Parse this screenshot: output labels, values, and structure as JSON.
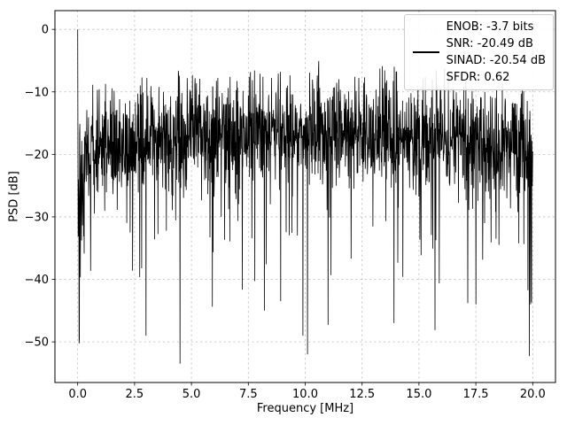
{
  "figure": {
    "xlabel": "Frequency [MHz]",
    "ylabel": "PSD [dB]",
    "xlim": [
      -1,
      21
    ],
    "ylim": [
      -56.5,
      3
    ],
    "x_ticks": {
      "values": [
        0,
        2.5,
        5,
        7.5,
        10,
        12.5,
        15,
        17.5,
        20
      ],
      "labels": [
        "0.0",
        "2.5",
        "5.0",
        "7.5",
        "10.0",
        "12.5",
        "15.0",
        "17.5",
        "20.0"
      ]
    },
    "y_ticks": {
      "values": [
        0,
        -10,
        -20,
        -30,
        -40,
        -50
      ],
      "labels": [
        "0",
        "−10",
        "−20",
        "−30",
        "−40",
        "−50"
      ]
    }
  },
  "legend": {
    "lines": [
      "ENOB: -3.7 bits",
      "SNR: -20.49 dB",
      "SINAD: -20.54 dB",
      "SFDR: 0.62"
    ],
    "line_color": "#000000"
  },
  "chart_data": {
    "type": "line",
    "title": "",
    "xlabel": "Frequency [MHz]",
    "ylabel": "PSD [dB]",
    "xlim": [
      -1,
      21
    ],
    "ylim": [
      -56.5,
      3
    ],
    "x_range_mhz": [
      0,
      20
    ],
    "grid": true,
    "legend_position": "upper right",
    "series": [
      {
        "name": "PSD",
        "color": "#000000",
        "description": "dense noise power spectral density, 0-20 MHz",
        "dc_spike_db": 0,
        "noise_mean_db": -19,
        "noise_std_db": 4.5,
        "top_envelope_db": -5.5,
        "deep_dip_min_db": -53.5
      }
    ],
    "annotations": {
      "ENOB": "-3.7 bits",
      "SNR": "-20.49 dB",
      "SINAD": "-20.54 dB",
      "SFDR": "0.62"
    },
    "notable_minima": [
      {
        "x": 3.0,
        "y": -49.0
      },
      {
        "x": 4.5,
        "y": -53.5
      },
      {
        "x": 8.2,
        "y": -45.0
      },
      {
        "x": 9.9,
        "y": -49.0
      },
      {
        "x": 10.1,
        "y": -52.0
      },
      {
        "x": 13.9,
        "y": -47.0
      },
      {
        "x": 17.5,
        "y": -44.0
      },
      {
        "x": 19.9,
        "y": -44.0
      }
    ],
    "noise_render": {
      "seed": 42,
      "num_points": 1900,
      "dip_probability": 0.045,
      "dip_extra_max_db": 26,
      "envelope_bump_db": 2.5
    }
  }
}
